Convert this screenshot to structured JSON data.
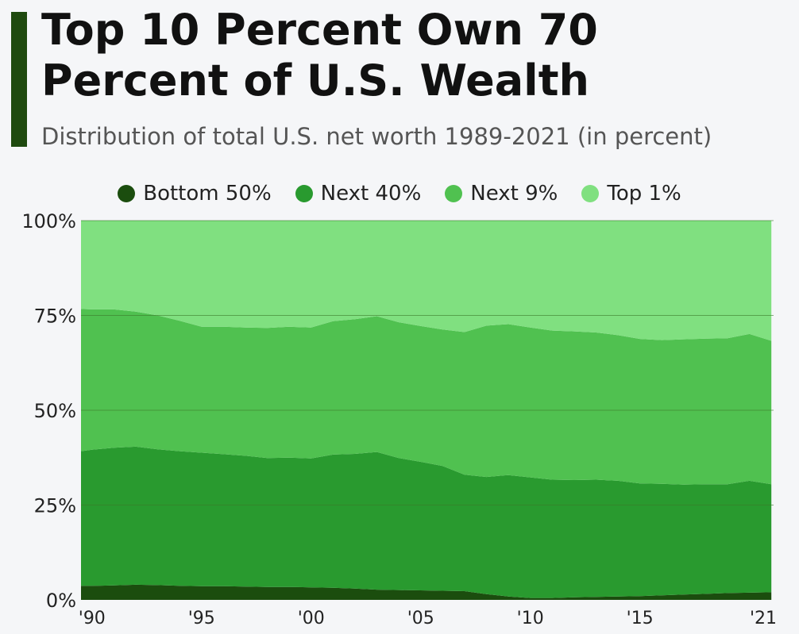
{
  "title": "Top 10 Percent Own 70 Percent of U.S. Wealth",
  "subtitle": "Distribution of total U.S. net worth 1989-2021 (in percent)",
  "colors": {
    "accent": "#1f4a0f",
    "grid": "#3a7a2a"
  },
  "legend": [
    {
      "label": "Bottom 50%",
      "color": "#1b4d0e"
    },
    {
      "label": "Next 40%",
      "color": "#299a2f"
    },
    {
      "label": "Next 9%",
      "color": "#50c150"
    },
    {
      "label": "Top 1%",
      "color": "#80e080"
    }
  ],
  "chart_data": {
    "type": "area",
    "stacked": true,
    "x": [
      1989.5,
      1990,
      1991,
      1992,
      1993,
      1994,
      1995,
      1996,
      1997,
      1998,
      1999,
      2000,
      2001,
      2002,
      2003,
      2004,
      2005,
      2006,
      2007,
      2008,
      2009,
      2010,
      2011,
      2012,
      2013,
      2014,
      2015,
      2016,
      2017,
      2018,
      2019,
      2020,
      2021
    ],
    "xlim": [
      1989.5,
      2021.1
    ],
    "ylim": [
      0,
      100
    ],
    "yticks": [
      0,
      25,
      50,
      75,
      100
    ],
    "ytick_labels": [
      "0%",
      "25%",
      "50%",
      "75%",
      "100%"
    ],
    "xticks": [
      1990,
      1995,
      2000,
      2005,
      2010,
      2015,
      2021
    ],
    "xtick_labels": [
      "'90",
      "'95",
      "'00",
      "'05",
      "'10",
      "'15",
      "'21"
    ],
    "series": [
      {
        "name": "Bottom 50%",
        "values": [
          3.7,
          3.7,
          3.8,
          4.0,
          3.9,
          3.7,
          3.6,
          3.6,
          3.5,
          3.4,
          3.4,
          3.3,
          3.2,
          3.0,
          2.7,
          2.6,
          2.5,
          2.4,
          2.3,
          1.5,
          0.9,
          0.5,
          0.5,
          0.7,
          0.8,
          0.9,
          1.0,
          1.2,
          1.4,
          1.6,
          1.8,
          1.9,
          2.0
        ]
      },
      {
        "name": "Next 40%",
        "values": [
          35.5,
          35.9,
          36.3,
          36.4,
          35.8,
          35.5,
          35.2,
          34.8,
          34.5,
          34.0,
          34.1,
          34.0,
          35.1,
          35.5,
          36.3,
          34.8,
          33.9,
          32.9,
          30.7,
          30.9,
          32.0,
          31.8,
          31.2,
          30.9,
          30.9,
          30.5,
          29.7,
          29.4,
          29.0,
          28.9,
          28.7,
          29.5,
          28.5
        ]
      },
      {
        "name": "Next 9%",
        "values": [
          37.5,
          37.0,
          36.5,
          35.6,
          35.3,
          34.4,
          33.2,
          33.6,
          33.8,
          34.3,
          34.5,
          34.5,
          35.2,
          35.5,
          35.8,
          35.8,
          35.8,
          36.0,
          37.6,
          39.9,
          39.8,
          39.5,
          39.3,
          39.2,
          38.8,
          38.4,
          38.1,
          37.9,
          38.3,
          38.4,
          38.5,
          38.7,
          37.8
        ]
      },
      {
        "name": "Top 1%",
        "values": [
          23.3,
          23.4,
          23.4,
          24.0,
          25.0,
          26.4,
          28.0,
          28.0,
          28.2,
          28.3,
          28.0,
          28.2,
          26.5,
          26.0,
          25.2,
          26.8,
          27.8,
          28.7,
          29.4,
          27.7,
          27.3,
          28.2,
          29.0,
          29.2,
          29.5,
          30.2,
          31.2,
          31.5,
          31.3,
          31.1,
          31.0,
          29.9,
          31.7
        ]
      }
    ]
  }
}
